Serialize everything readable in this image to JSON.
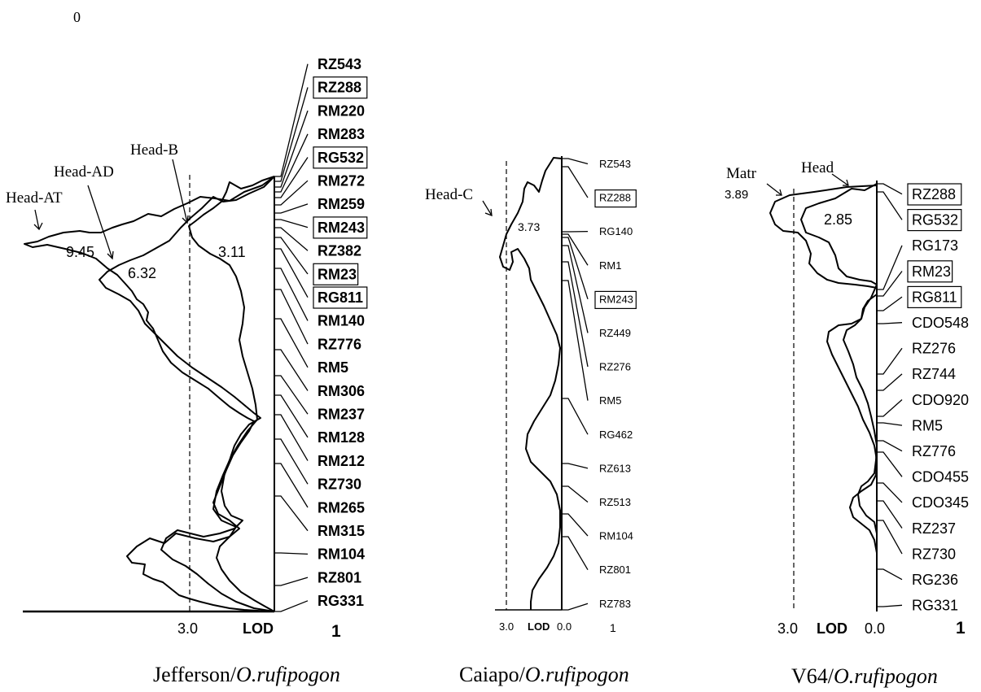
{
  "corner_label": "0",
  "panels": [
    {
      "caption_plain": "Jefferson/",
      "caption_italic": "O.rufipogon",
      "threshold_label": "3.0",
      "lod_label": "LOD",
      "chrom_label": "1",
      "markers": [
        "RZ543",
        "RZ288",
        "RM220",
        "RM283",
        "RG532",
        "RM272",
        "RM259",
        "RM243",
        "RZ382",
        "RM23",
        "RG811",
        "RM140",
        "RZ776",
        "RM5",
        "RM306",
        "RM237",
        "RM128",
        "RM212",
        "RZ730",
        "RM265",
        "RM315",
        "RM104",
        "RZ801",
        "RG331"
      ],
      "boxed_markers": [
        "RZ288",
        "RG532",
        "RM243",
        "RM23",
        "RG811"
      ],
      "qtl_labels": [
        "Head-AT",
        "Head-AD",
        "Head-B"
      ],
      "peak_values": [
        "9.45",
        "6.32",
        "3.11"
      ]
    },
    {
      "caption_plain": "Caiapo/",
      "caption_italic": "O.rufipogon",
      "threshold_label": "3.0",
      "lod_label": "LOD",
      "zero_label": "0.0",
      "chrom_label": "1",
      "markers": [
        "RZ543",
        "RZ288",
        "RG140",
        "RM1",
        "RM243",
        "RZ449",
        "RZ276",
        "RM5",
        "RG462",
        "RZ613",
        "RZ513",
        "RM104",
        "RZ801",
        "RZ783"
      ],
      "boxed_markers": [
        "RZ288",
        "RM243"
      ],
      "qtl_labels": [
        "Head-C"
      ],
      "peak_values": [
        "3.73"
      ]
    },
    {
      "caption_plain": "V64/",
      "caption_italic": "O.rufipogon",
      "threshold_label": "3.0",
      "lod_label": "LOD",
      "zero_label": "0.0",
      "chrom_label": "1",
      "markers": [
        "RZ288",
        "RG532",
        "RG173",
        "RM23",
        "RG811",
        "CDO548",
        "RZ276",
        "RZ744",
        "CDO920",
        "RM5",
        "RZ776",
        "CDO455",
        "CDO345",
        "RZ237",
        "RZ730",
        "RG236",
        "RG331"
      ],
      "boxed_markers": [
        "RZ288",
        "RG532",
        "RM23",
        "RG811"
      ],
      "qtl_labels": [
        "Head",
        "Matr"
      ],
      "peak_values": [
        "2.85",
        "3.89"
      ]
    }
  ]
}
